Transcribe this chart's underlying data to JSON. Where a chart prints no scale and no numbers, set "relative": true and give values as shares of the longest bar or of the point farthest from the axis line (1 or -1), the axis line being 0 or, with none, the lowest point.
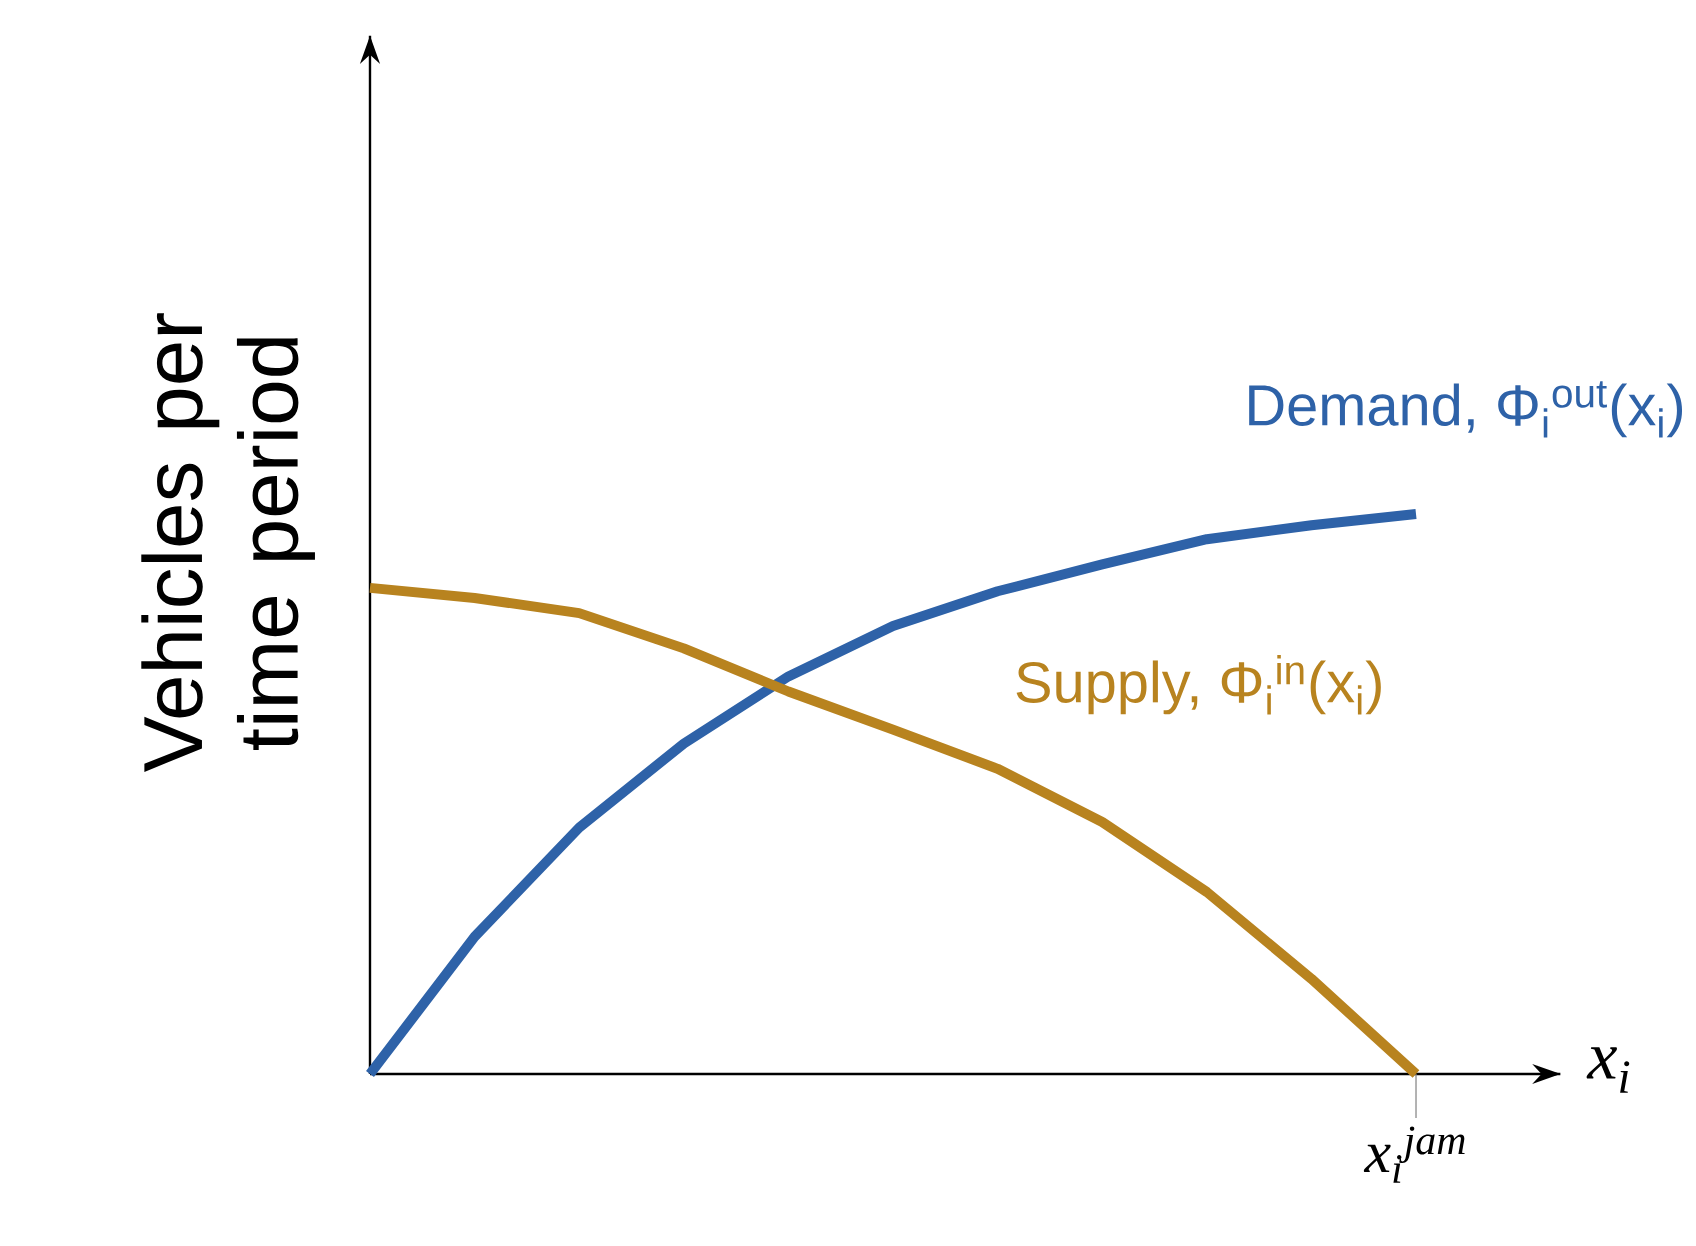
{
  "chart_data": {
    "type": "line",
    "relative": true,
    "xlabel": "x$_{i}$",
    "ylabel": "Vehicles per time period",
    "annotations": [
      "x$_{i}$$^{jam}$"
    ],
    "marker": "none",
    "line_style": "solid",
    "categories": [
      null,
      null,
      null,
      null,
      null,
      null,
      null,
      null,
      null,
      null,
      null
    ],
    "series": [
      {
        "name": "Demand, Φ$_{i}$$^{out}$(x$_{i}$)",
        "color": "#2e62a8",
        "values": [
          0,
          0.245,
          0.44,
          0.59,
          0.71,
          0.8,
          0.862,
          0.91,
          0.955,
          0.98,
          1.0
        ]
      },
      {
        "name": "Supply, Φ$_{i}$$^{in}$(x$_{i}$)",
        "color": "#b8831f",
        "values": [
          0.868,
          0.85,
          0.823,
          0.76,
          0.683,
          0.615,
          0.545,
          0.45,
          0.325,
          0.17,
          0
        ]
      }
    ]
  }
}
